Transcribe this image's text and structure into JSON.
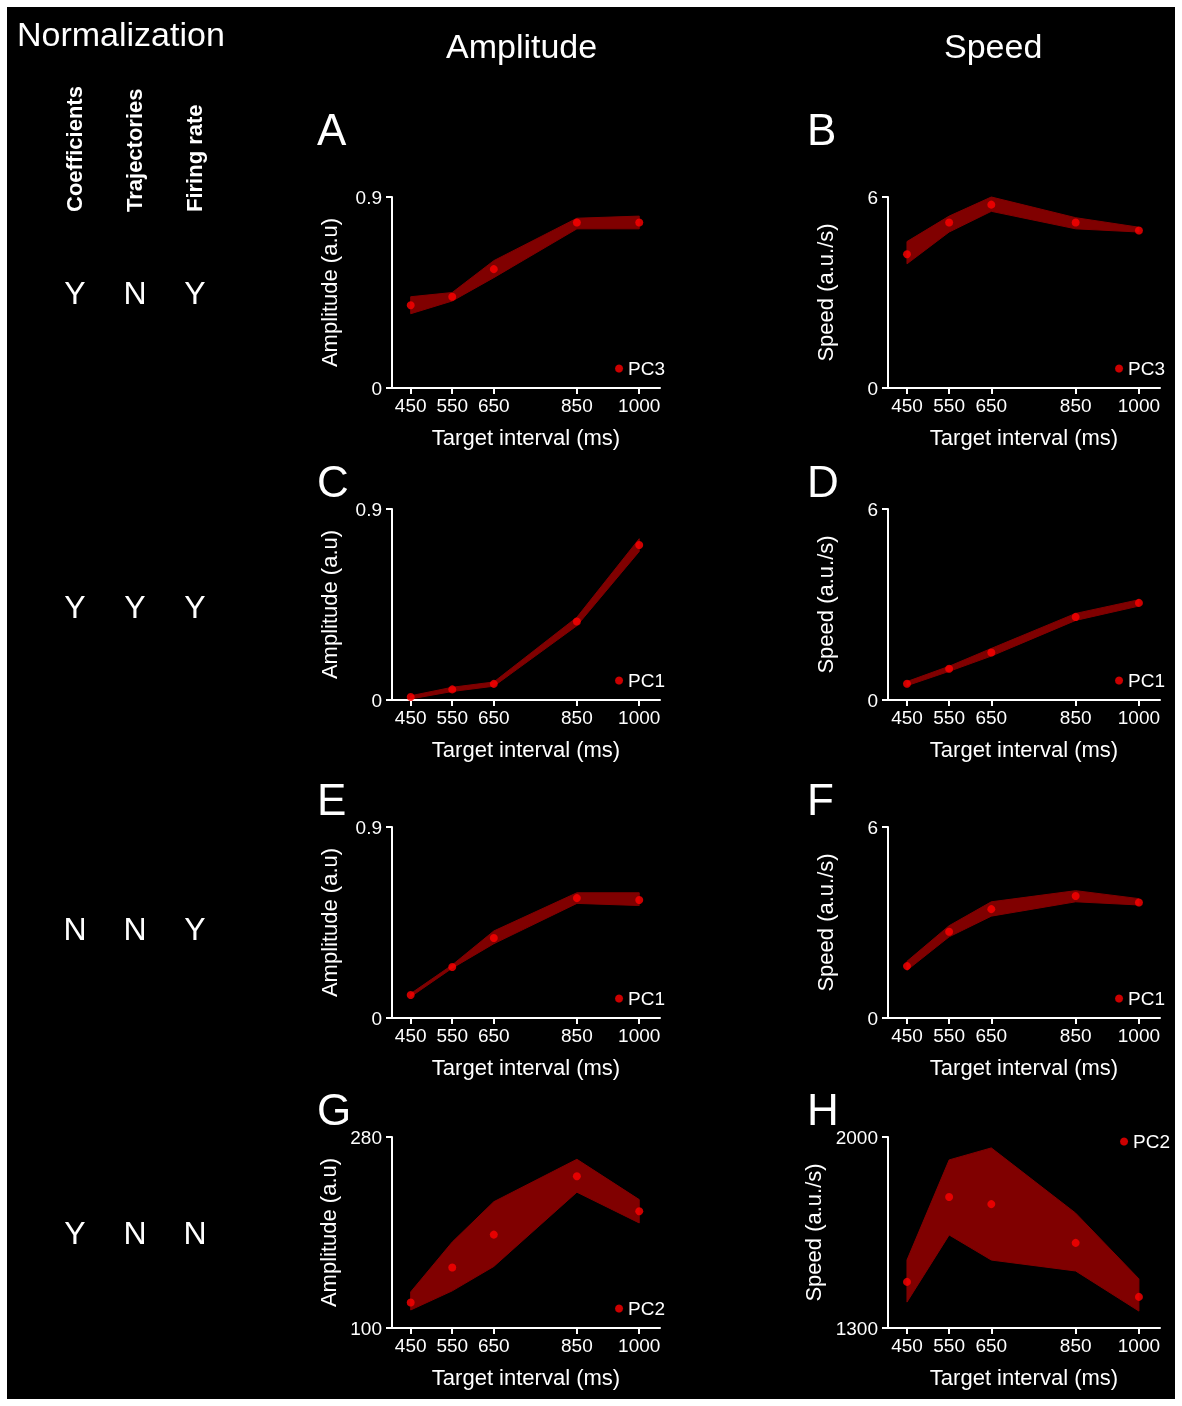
{
  "chart_data": [
    {
      "type": "other",
      "title": "Normalization",
      "categories": [
        "Coefficients",
        "Trajectories",
        "Firing rate"
      ],
      "cell_labels": [
        [
          "Y",
          "N",
          "Y"
        ],
        [
          "Y",
          "Y",
          "Y"
        ],
        [
          "N",
          "N",
          "Y"
        ],
        [
          "Y",
          "N",
          "N"
        ]
      ]
    },
    {
      "type": "scatter",
      "title": "A",
      "annotations": [
        "Amplitude"
      ],
      "xlabel": "Target interval (ms)",
      "ylabel": "Amplitude (a.u)",
      "xlim": [
        405,
        1050
      ],
      "xticks": [
        450,
        550,
        650,
        850,
        1000
      ],
      "ylim": [
        0,
        0.9
      ],
      "yticks": [
        0,
        0.9
      ],
      "marker": "circle",
      "legend": "bottom right",
      "grid": false,
      "series": [
        {
          "name": "PC3",
          "color": "#ff0000",
          "x": [
            450,
            550,
            650,
            850,
            1000
          ],
          "values": [
            0.39,
            0.43,
            0.56,
            0.78,
            0.78
          ],
          "lower": [
            0.35,
            0.41,
            0.52,
            0.75,
            0.75
          ],
          "upper": [
            0.43,
            0.45,
            0.6,
            0.8,
            0.81
          ]
        }
      ]
    },
    {
      "type": "scatter",
      "title": "B",
      "annotations": [
        "Speed"
      ],
      "xlabel": "Target interval (ms)",
      "ylabel": "Speed (a.u./s)",
      "xlim": [
        405,
        1050
      ],
      "xticks": [
        450,
        550,
        650,
        850,
        1000
      ],
      "ylim": [
        0,
        6
      ],
      "yticks": [
        0,
        6
      ],
      "marker": "circle",
      "legend": "bottom right",
      "grid": false,
      "series": [
        {
          "name": "PC3",
          "color": "#ff0000",
          "x": [
            450,
            550,
            650,
            850,
            1000
          ],
          "values": [
            4.2,
            5.2,
            5.76,
            5.2,
            4.95
          ],
          "lower": [
            3.9,
            4.9,
            5.55,
            5.0,
            4.9
          ],
          "upper": [
            4.6,
            5.4,
            6.0,
            5.35,
            5.05
          ]
        }
      ]
    },
    {
      "type": "scatter",
      "title": "C",
      "xlabel": "Target interval (ms)",
      "ylabel": "Amplitude (a.u)",
      "xlim": [
        405,
        1050
      ],
      "xticks": [
        450,
        550,
        650,
        850,
        1000
      ],
      "ylim": [
        0,
        0.9
      ],
      "yticks": [
        0,
        0.9
      ],
      "marker": "circle",
      "legend": "bottom right",
      "grid": false,
      "series": [
        {
          "name": "PC1",
          "color": "#ff0000",
          "x": [
            450,
            550,
            650,
            850,
            1000
          ],
          "values": [
            0.014,
            0.05,
            0.076,
            0.37,
            0.73
          ],
          "lower": [
            0.005,
            0.04,
            0.065,
            0.35,
            0.7
          ],
          "upper": [
            0.02,
            0.06,
            0.085,
            0.39,
            0.76
          ]
        }
      ]
    },
    {
      "type": "scatter",
      "title": "D",
      "xlabel": "Target interval (ms)",
      "ylabel": "Speed (a.u./s)",
      "xlim": [
        405,
        1050
      ],
      "xticks": [
        450,
        550,
        650,
        850,
        1000
      ],
      "ylim": [
        0,
        6
      ],
      "yticks": [
        0,
        6
      ],
      "marker": "circle",
      "legend": "bottom right",
      "grid": false,
      "series": [
        {
          "name": "PC1",
          "color": "#ff0000",
          "x": [
            450,
            550,
            650,
            850,
            1000
          ],
          "values": [
            0.51,
            0.98,
            1.49,
            2.61,
            3.05
          ],
          "lower": [
            0.45,
            0.9,
            1.38,
            2.5,
            2.95
          ],
          "upper": [
            0.58,
            1.06,
            1.62,
            2.72,
            3.15
          ]
        }
      ]
    },
    {
      "type": "scatter",
      "title": "E",
      "xlabel": "Target interval (ms)",
      "ylabel": "Amplitude (a.u)",
      "xlim": [
        405,
        1050
      ],
      "xticks": [
        450,
        550,
        650,
        850,
        1000
      ],
      "ylim": [
        0,
        0.9
      ],
      "yticks": [
        0,
        0.9
      ],
      "marker": "circle",
      "legend": "bottom right",
      "grid": false,
      "series": [
        {
          "name": "PC1",
          "color": "#ff0000",
          "x": [
            450,
            550,
            650,
            850,
            1000
          ],
          "values": [
            0.108,
            0.24,
            0.377,
            0.565,
            0.556
          ],
          "lower": [
            0.1,
            0.235,
            0.35,
            0.54,
            0.53
          ],
          "upper": [
            0.115,
            0.25,
            0.41,
            0.59,
            0.59
          ]
        }
      ]
    },
    {
      "type": "scatter",
      "title": "F",
      "xlabel": "Target interval (ms)",
      "ylabel": "Speed (a.u./s)",
      "xlim": [
        405,
        1050
      ],
      "xticks": [
        450,
        550,
        650,
        850,
        1000
      ],
      "ylim": [
        0,
        6
      ],
      "yticks": [
        0,
        6
      ],
      "marker": "circle",
      "legend": "bottom right",
      "grid": false,
      "series": [
        {
          "name": "PC1",
          "color": "#ff0000",
          "x": [
            450,
            550,
            650,
            850,
            1000
          ],
          "values": [
            1.63,
            2.71,
            3.42,
            3.83,
            3.63
          ],
          "lower": [
            1.5,
            2.55,
            3.2,
            3.65,
            3.55
          ],
          "upper": [
            1.78,
            2.9,
            3.65,
            4.0,
            3.75
          ]
        }
      ]
    },
    {
      "type": "scatter",
      "title": "G",
      "xlabel": "Target interval (ms)",
      "ylabel": "Amplitude (a.u)",
      "xlim": [
        405,
        1050
      ],
      "xticks": [
        450,
        550,
        650,
        850,
        1000
      ],
      "ylim": [
        100,
        280
      ],
      "yticks": [
        100,
        280
      ],
      "marker": "circle",
      "legend": "bottom right",
      "grid": false,
      "series": [
        {
          "name": "PC2",
          "color": "#ff0000",
          "x": [
            450,
            550,
            650,
            850,
            1000
          ],
          "values": [
            124,
            157,
            188,
            243,
            210
          ],
          "lower": [
            117,
            135,
            158,
            228,
            199
          ],
          "upper": [
            134,
            181,
            219,
            259,
            221
          ]
        }
      ]
    },
    {
      "type": "scatter",
      "title": "H",
      "xlabel": "Target interval (ms)",
      "ylabel": "Speed (a.u./s)",
      "xlim": [
        405,
        1050
      ],
      "xticks": [
        450,
        550,
        650,
        850,
        1000
      ],
      "ylim": [
        1300,
        2000
      ],
      "yticks": [
        1300,
        2000
      ],
      "marker": "circle",
      "legend": "top right",
      "grid": false,
      "series": [
        {
          "name": "PC2",
          "color": "#ff0000",
          "x": [
            450,
            550,
            650,
            850,
            1000
          ],
          "values": [
            1469,
            1780,
            1754,
            1612,
            1414
          ],
          "lower": [
            1395,
            1641,
            1549,
            1509,
            1362
          ],
          "upper": [
            1549,
            1916,
            1960,
            1721,
            1480
          ]
        }
      ]
    }
  ]
}
